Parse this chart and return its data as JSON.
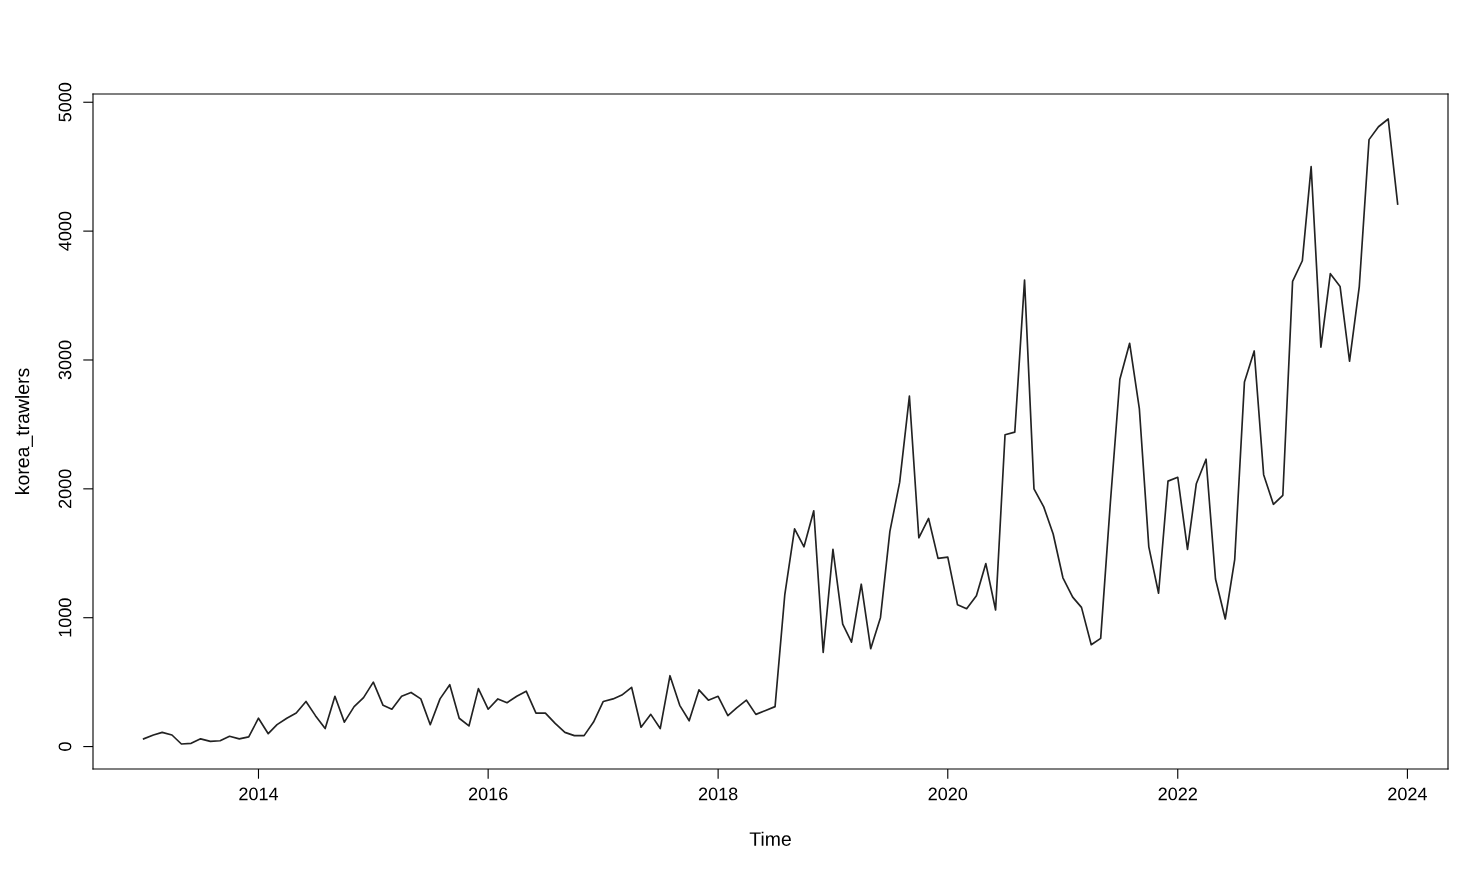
{
  "chart_data": {
    "type": "line",
    "xlabel": "Time",
    "ylabel": "korea_trawlers",
    "x": [
      "2013-01",
      "2013-02",
      "2013-03",
      "2013-04",
      "2013-05",
      "2013-06",
      "2013-07",
      "2013-08",
      "2013-09",
      "2013-10",
      "2013-11",
      "2013-12",
      "2014-01",
      "2014-02",
      "2014-03",
      "2014-04",
      "2014-05",
      "2014-06",
      "2014-07",
      "2014-08",
      "2014-09",
      "2014-10",
      "2014-11",
      "2014-12",
      "2015-01",
      "2015-02",
      "2015-03",
      "2015-04",
      "2015-05",
      "2015-06",
      "2015-07",
      "2015-08",
      "2015-09",
      "2015-10",
      "2015-11",
      "2015-12",
      "2016-01",
      "2016-02",
      "2016-03",
      "2016-04",
      "2016-05",
      "2016-06",
      "2016-07",
      "2016-08",
      "2016-09",
      "2016-10",
      "2016-11",
      "2016-12",
      "2017-01",
      "2017-02",
      "2017-03",
      "2017-04",
      "2017-05",
      "2017-06",
      "2017-07",
      "2017-08",
      "2017-09",
      "2017-10",
      "2017-11",
      "2017-12",
      "2018-01",
      "2018-02",
      "2018-03",
      "2018-04",
      "2018-05",
      "2018-06",
      "2018-07",
      "2018-08",
      "2018-09",
      "2018-10",
      "2018-11",
      "2018-12",
      "2019-01",
      "2019-02",
      "2019-03",
      "2019-04",
      "2019-05",
      "2019-06",
      "2019-07",
      "2019-08",
      "2019-09",
      "2019-10",
      "2019-11",
      "2019-12",
      "2020-01",
      "2020-02",
      "2020-03",
      "2020-04",
      "2020-05",
      "2020-06",
      "2020-07",
      "2020-08",
      "2020-09",
      "2020-10",
      "2020-11",
      "2020-12",
      "2021-01",
      "2021-02",
      "2021-03",
      "2021-04",
      "2021-05",
      "2021-06",
      "2021-07",
      "2021-08",
      "2021-09",
      "2021-10",
      "2021-11",
      "2021-12",
      "2022-01",
      "2022-02",
      "2022-03",
      "2022-04",
      "2022-05",
      "2022-06",
      "2022-07",
      "2022-08",
      "2022-09",
      "2022-10",
      "2022-11",
      "2022-12",
      "2023-01",
      "2023-02",
      "2023-03",
      "2023-04",
      "2023-05",
      "2023-06",
      "2023-07",
      "2023-08",
      "2023-09",
      "2023-10",
      "2023-11",
      "2023-12"
    ],
    "series": [
      {
        "color": "#222222",
        "values": [
          60,
          90,
          110,
          90,
          20,
          25,
          60,
          40,
          45,
          80,
          60,
          75,
          220,
          100,
          170,
          220,
          260,
          350,
          240,
          140,
          390,
          190,
          310,
          380,
          500,
          320,
          290,
          390,
          420,
          370,
          170,
          370,
          480,
          220,
          160,
          450,
          290,
          370,
          340,
          390,
          430,
          260,
          260,
          180,
          110,
          85,
          85,
          190,
          350,
          370,
          400,
          460,
          150,
          250,
          140,
          550,
          320,
          200,
          440,
          360,
          390,
          240,
          300,
          360,
          250,
          280,
          310,
          1180,
          1690,
          1550,
          1830,
          730,
          1530,
          950,
          810,
          1260,
          760,
          1000,
          1670,
          2050,
          2720,
          1620,
          1770,
          1460,
          1470,
          1100,
          1070,
          1170,
          1420,
          1060,
          2420,
          2440,
          3620,
          2000,
          1860,
          1650,
          1310,
          1160,
          1080,
          790,
          840,
          1900,
          2850,
          3130,
          2620,
          1550,
          1190,
          2060,
          2090,
          1530,
          2040,
          2230,
          1300,
          990,
          1450,
          2830,
          3070,
          2110,
          1880,
          1950,
          3610,
          3770,
          4500,
          3100,
          3670,
          3570,
          2990,
          3570,
          4710,
          4810,
          4870,
          4210
        ]
      }
    ],
    "xlim": [
      "2012-07-24",
      "2024-05-09"
    ],
    "xticks": [
      {
        "value": "2014-01-01",
        "label": "2014"
      },
      {
        "value": "2016-01-01",
        "label": "2016"
      },
      {
        "value": "2018-01-01",
        "label": "2018"
      },
      {
        "value": "2020-01-01",
        "label": "2020"
      },
      {
        "value": "2022-01-01",
        "label": "2022"
      },
      {
        "value": "2024-01-01",
        "label": "2024"
      }
    ],
    "ylim": [
      -174,
      5064
    ],
    "yticks": [
      0,
      1000,
      2000,
      3000,
      4000,
      5000
    ],
    "grid": false,
    "marker": "none",
    "line_style": "solid"
  }
}
